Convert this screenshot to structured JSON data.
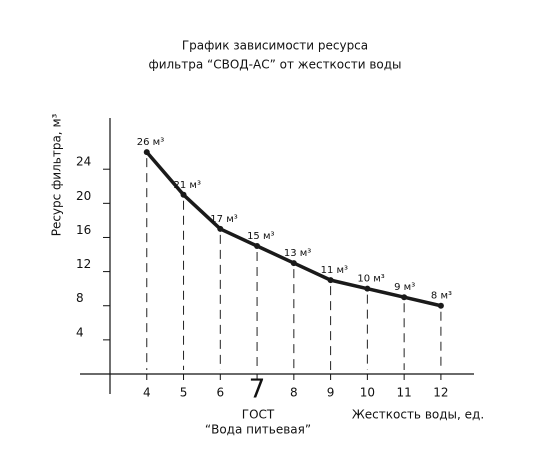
{
  "chart_data": {
    "type": "line",
    "title": [
      "График зависимости ресурса",
      "фильтра “СВОД-АС” от жесткости воды"
    ],
    "y_label": "Ресурс фильтра, м³",
    "x_label": "Жесткость воды, ед.",
    "annotation": [
      "ГОСТ",
      "“Вода питьевая”"
    ],
    "highlight_tick": 7,
    "x": [
      4,
      5,
      6,
      7,
      8,
      9,
      10,
      11,
      12
    ],
    "series": [
      {
        "color": "#1a1a1a",
        "values": [
          26,
          21,
          17,
          15,
          13,
          11,
          10,
          9,
          8
        ],
        "value_labels": [
          "26 м³",
          "21 м³",
          "17 м³",
          "15 м³",
          "13 м³",
          "11 м³",
          "10 м³",
          "9 м³",
          "8 м³"
        ]
      }
    ],
    "xlim": [
      3,
      12.9
    ],
    "xticks": [
      4,
      5,
      6,
      7,
      8,
      9,
      10,
      11,
      12
    ],
    "ylim": [
      0,
      30
    ],
    "yticks": [
      4,
      8,
      12,
      16,
      20,
      24
    ]
  }
}
